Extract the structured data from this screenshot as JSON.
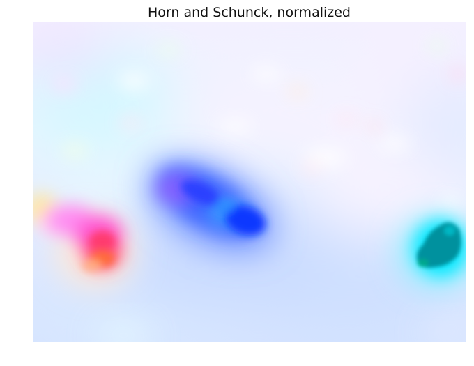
{
  "figure": {
    "title": "Horn and Schunck, normalized"
  },
  "colors": {
    "background_tint": "#e6f0ff",
    "pale_cyan": "#d8faff",
    "pale_lavender": "#f0ecff",
    "blob_blue": "#1a3cff",
    "blob_magenta": "#ff4de6",
    "blob_red": "#ff5a4a",
    "blob_teal": "#008a96",
    "blob_cyan": "#00e6ff"
  }
}
